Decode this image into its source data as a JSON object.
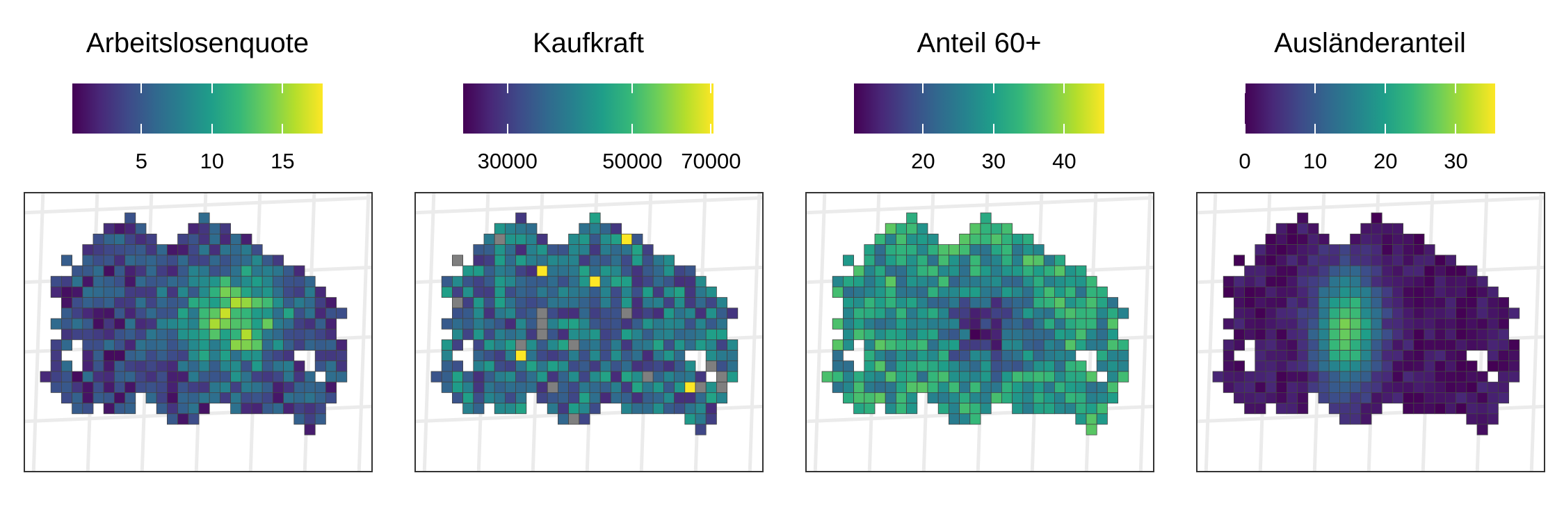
{
  "panels": [
    {
      "title": "Arbeitslosenquote",
      "ticks": [
        {
          "label": "5",
          "pos": 0.276
        },
        {
          "label": "10",
          "pos": 0.558
        },
        {
          "label": "15",
          "pos": 0.84
        }
      ],
      "range": [
        0.1,
        17.9
      ],
      "seed": 11,
      "mode": "unemployment"
    },
    {
      "title": "Kaufkraft",
      "ticks": [
        {
          "label": "30000",
          "pos": 0.177
        },
        {
          "label": "50000",
          "pos": 0.676
        },
        {
          "label": "70000",
          "pos": 0.99
        }
      ],
      "range": [
        23000,
        70000
      ],
      "seed": 23,
      "mode": "purchasing"
    },
    {
      "title": "Anteil 60+",
      "ticks": [
        {
          "label": "20",
          "pos": 0.276
        },
        {
          "label": "30",
          "pos": 0.558
        },
        {
          "label": "40",
          "pos": 0.84
        }
      ],
      "range": [
        10.2,
        45.7
      ],
      "seed": 37,
      "mode": "age"
    },
    {
      "title": "Ausländeranteil",
      "ticks": [
        {
          "label": "0",
          "pos": 0.0
        },
        {
          "label": "10",
          "pos": 0.281
        },
        {
          "label": "20",
          "pos": 0.562
        },
        {
          "label": "30",
          "pos": 0.843
        }
      ],
      "range": [
        0,
        35.6
      ],
      "seed": 53,
      "mode": "foreign"
    }
  ],
  "colors": {
    "missing": "#7f7f7f",
    "grid": "#ebebeb",
    "cell_border": "#444444"
  }
}
